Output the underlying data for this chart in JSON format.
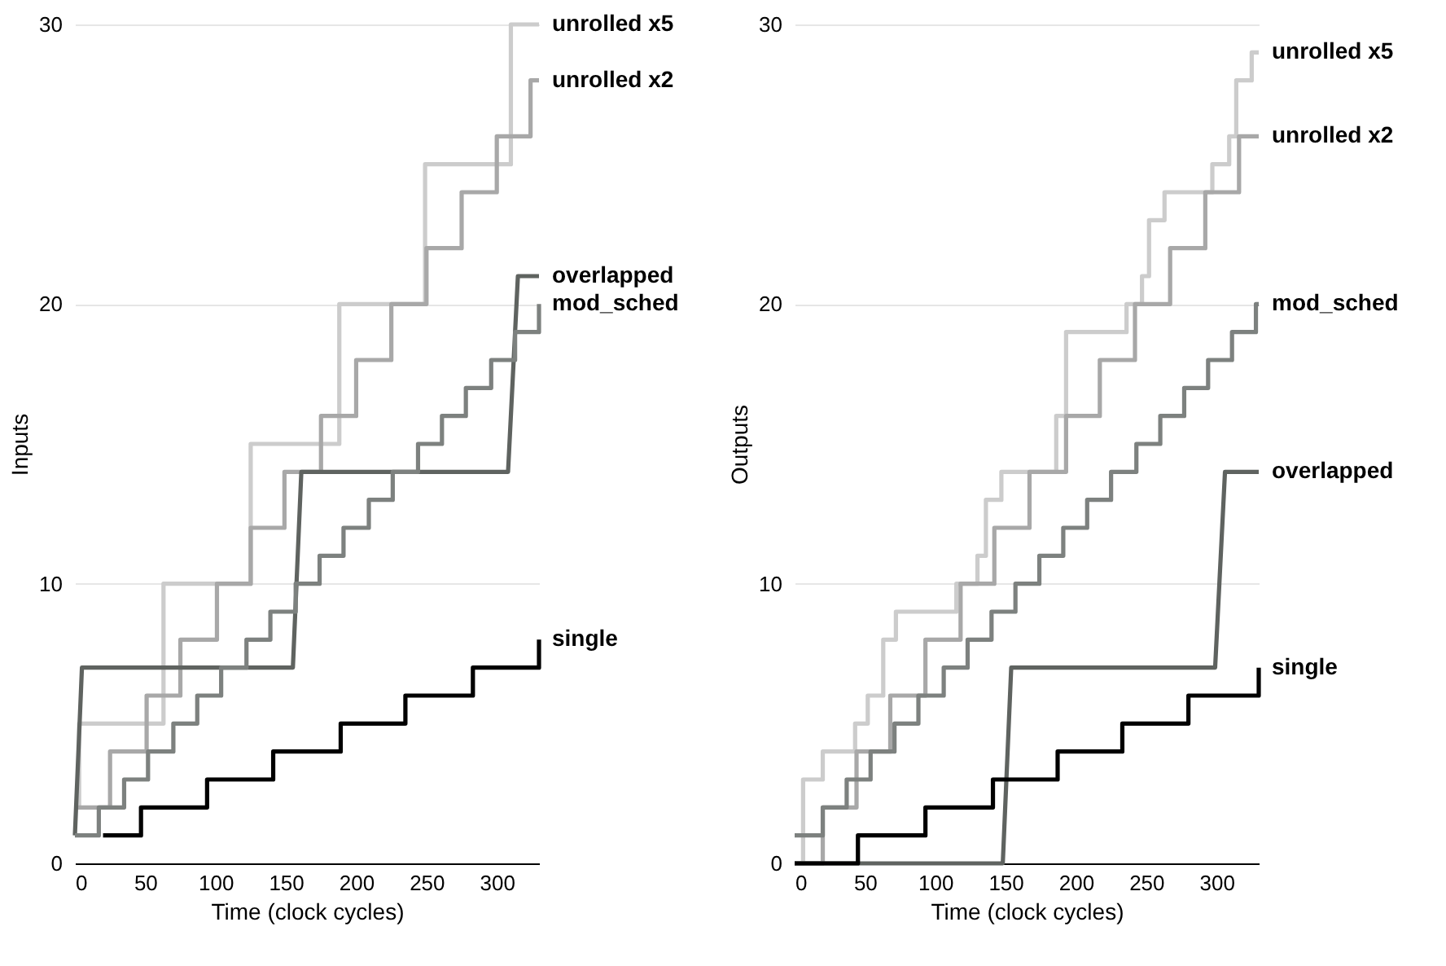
{
  "chart_data": [
    {
      "type": "step",
      "xlabel": "Time (clock cycles)",
      "ylabel": "Inputs",
      "xlim": [
        0,
        330
      ],
      "ylim": [
        0,
        30
      ],
      "xticks": [
        0,
        50,
        100,
        150,
        200,
        250,
        300
      ],
      "yticks": [
        0,
        10,
        20,
        30
      ],
      "grid": "y",
      "marker": "none",
      "line_style": "solid",
      "series": [
        {
          "name": "unrolled x5",
          "color": "#cccccc",
          "x": [
            0,
            3,
            63,
            125,
            188,
            249,
            310,
            330
          ],
          "values": [
            2,
            5,
            10,
            15,
            20,
            25,
            30,
            30
          ]
        },
        {
          "name": "unrolled x2",
          "color": "#a8a8a8",
          "x": [
            0,
            25,
            51,
            75,
            101,
            125,
            149,
            175,
            200,
            225,
            250,
            275,
            300,
            324,
            330
          ],
          "values": [
            2,
            4,
            6,
            8,
            10,
            12,
            14,
            16,
            18,
            20,
            22,
            24,
            26,
            28,
            28
          ]
        },
        {
          "name": "overlapped",
          "color": "#5f6360",
          "type": "line",
          "x": [
            0,
            5,
            155,
            161,
            308,
            315,
            330
          ],
          "values": [
            1,
            7,
            7,
            14,
            14,
            21,
            21
          ]
        },
        {
          "name": "mod_sched",
          "color": "#7d817f",
          "x": [
            0,
            17,
            35,
            52,
            70,
            87,
            104,
            122,
            139,
            157,
            174,
            191,
            209,
            226,
            244,
            261,
            278,
            296,
            313,
            330
          ],
          "values": [
            1,
            2,
            3,
            4,
            5,
            6,
            7,
            8,
            9,
            10,
            11,
            12,
            13,
            14,
            15,
            16,
            17,
            18,
            19,
            20
          ]
        },
        {
          "name": "single",
          "color": "#000000",
          "x": [
            20,
            47,
            94,
            141,
            189,
            235,
            283,
            330
          ],
          "values": [
            1,
            2,
            3,
            4,
            5,
            6,
            7,
            8
          ]
        }
      ]
    },
    {
      "type": "step",
      "xlabel": "Time (clock cycles)",
      "ylabel": "Outputs",
      "xlim": [
        0,
        330
      ],
      "ylim": [
        0,
        30
      ],
      "xticks": [
        0,
        50,
        100,
        150,
        200,
        250,
        300
      ],
      "yticks": [
        0,
        10,
        20,
        30
      ],
      "grid": "y",
      "marker": "none",
      "line_style": "solid",
      "series": [
        {
          "name": "unrolled x5",
          "color": "#cccccc",
          "x": [
            0,
            6,
            20,
            43,
            52,
            63,
            72,
            115,
            130,
            136,
            147,
            186,
            193,
            236,
            247,
            252,
            263,
            297,
            309,
            314,
            325,
            330
          ],
          "values": [
            0,
            3,
            4,
            5,
            6,
            8,
            9,
            10,
            11,
            13,
            14,
            16,
            19,
            20,
            21,
            23,
            24,
            25,
            26,
            28,
            29,
            29
          ]
        },
        {
          "name": "unrolled x2",
          "color": "#a8a8a8",
          "x": [
            0,
            20,
            44,
            68,
            93,
            118,
            142,
            167,
            193,
            217,
            242,
            267,
            292,
            316,
            330
          ],
          "values": [
            0,
            2,
            4,
            6,
            8,
            10,
            12,
            14,
            16,
            18,
            20,
            22,
            24,
            26,
            26
          ]
        },
        {
          "name": "mod_sched",
          "color": "#7d817f",
          "x": [
            0,
            20,
            37,
            54,
            71,
            88,
            106,
            123,
            140,
            157,
            174,
            191,
            208,
            225,
            243,
            260,
            277,
            294,
            311,
            328,
            330
          ],
          "values": [
            1,
            2,
            3,
            4,
            5,
            6,
            7,
            8,
            9,
            10,
            11,
            12,
            13,
            14,
            15,
            16,
            17,
            18,
            19,
            20,
            20
          ]
        },
        {
          "name": "overlapped",
          "color": "#5f6360",
          "type": "line",
          "x": [
            0,
            148,
            154,
            299,
            306,
            330
          ],
          "values": [
            0,
            0,
            7,
            7,
            14,
            14
          ]
        },
        {
          "name": "single",
          "color": "#000000",
          "x": [
            0,
            45,
            93,
            141,
            187,
            233,
            280,
            330
          ],
          "values": [
            0,
            1,
            2,
            3,
            4,
            5,
            6,
            7
          ]
        }
      ]
    }
  ]
}
